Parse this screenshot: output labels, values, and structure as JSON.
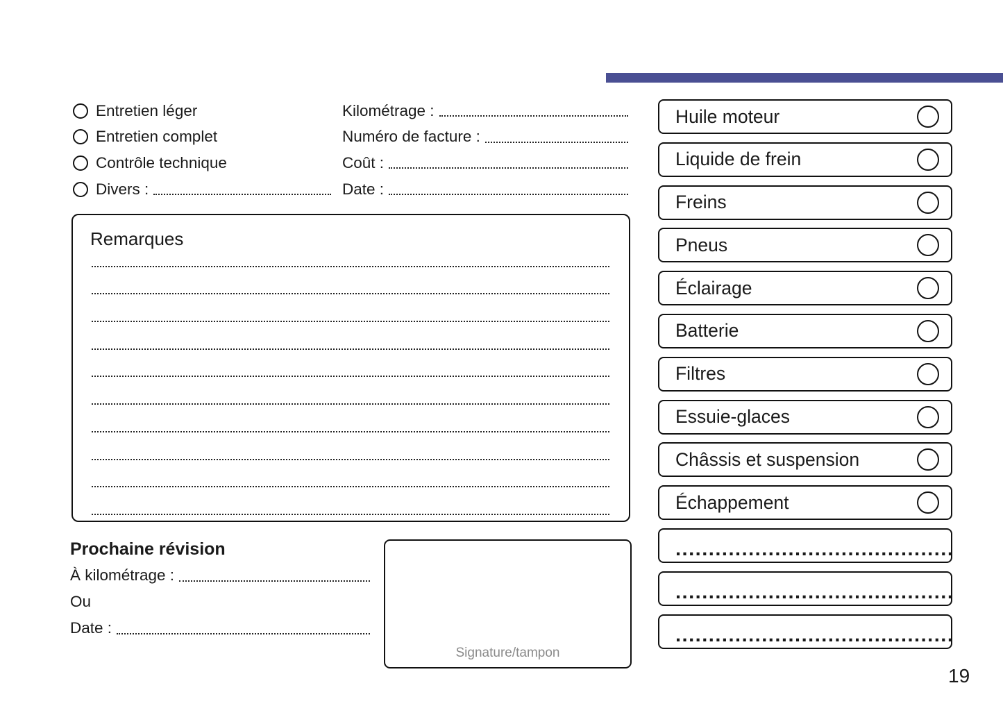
{
  "page": {
    "number": "19"
  },
  "theme": {
    "accent_color": "#4a4f93",
    "ink": "#111111",
    "muted": "#8a8a8a"
  },
  "service_type": {
    "options": [
      {
        "label": "Entretien léger",
        "leader": false
      },
      {
        "label": "Entretien complet",
        "leader": false
      },
      {
        "label": "Contrôle technique",
        "leader": false
      },
      {
        "label": "Divers :",
        "leader": true
      }
    ]
  },
  "invoice_fields": [
    {
      "label": "Kilométrage :"
    },
    {
      "label": "Numéro de facture :"
    },
    {
      "label": "Coût :"
    },
    {
      "label": "Date :"
    }
  ],
  "remarks": {
    "title": "Remarques",
    "line_count": 10
  },
  "next_service": {
    "title": "Prochaine révision",
    "rows": [
      {
        "label": "À kilométrage :",
        "leader": true
      },
      {
        "label": "Ou",
        "leader": false
      },
      {
        "label": "Date :",
        "leader": true
      }
    ]
  },
  "signature": {
    "label": "Signature/tampon"
  },
  "checklist": {
    "items": [
      "Huile moteur",
      "Liquide de frein",
      "Freins",
      "Pneus",
      "Éclairage",
      "Batterie",
      "Filtres",
      "Essuie-glaces",
      "Châssis et suspension",
      "Échappement"
    ],
    "blank_rows": 3,
    "blank_label": "..........................................."
  }
}
